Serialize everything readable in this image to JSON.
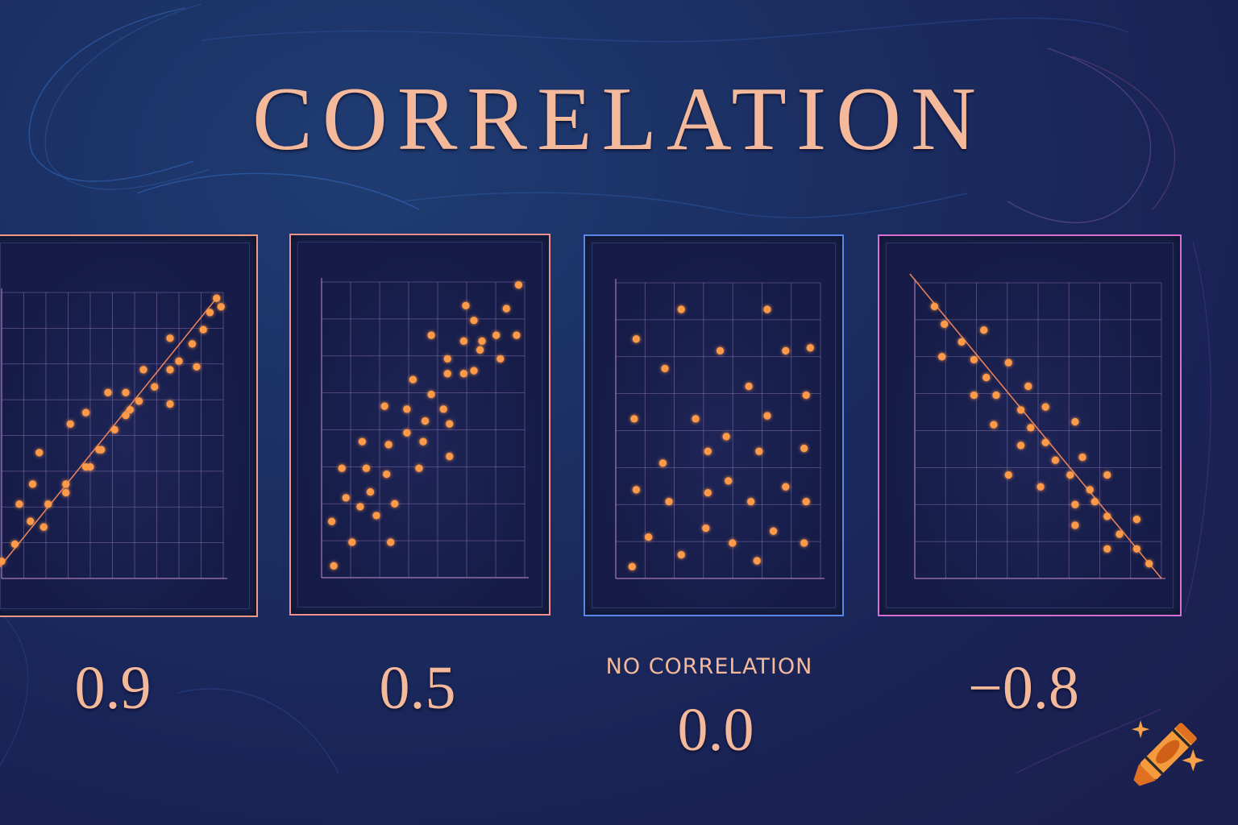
{
  "title": "CORRELATION",
  "labels": {
    "panel1_value": "0.9",
    "panel2_value": "0.5",
    "panel3_caption": "NO CORRELATION",
    "panel3_value": "0.0",
    "panel4_value": "−0.8"
  },
  "colors": {
    "background": "#1b2a5e",
    "text": "#f4b99a",
    "dot": "#ff9a4a",
    "grid": "#9a7fc0",
    "border_panel1": "#f29a86",
    "border_panel2": "#f08f8f",
    "border_panel3": "#5a86e8",
    "border_panel4": "#d86fd0"
  },
  "logo": {
    "icon": "crayon-icon",
    "sparkles": 2
  },
  "chart_data": [
    {
      "type": "scatter",
      "title": "0.9",
      "correlation": 0.9,
      "trendline": true,
      "grid": true,
      "xlim": [
        0,
        1
      ],
      "ylim": [
        0,
        1
      ],
      "points": [
        [
          0.0,
          0.06
        ],
        [
          0.06,
          0.12
        ],
        [
          0.13,
          0.2
        ],
        [
          0.21,
          0.26
        ],
        [
          0.29,
          0.33
        ],
        [
          0.38,
          0.39
        ],
        [
          0.44,
          0.45
        ],
        [
          0.51,
          0.52
        ],
        [
          0.56,
          0.57
        ],
        [
          0.62,
          0.62
        ],
        [
          0.69,
          0.67
        ],
        [
          0.76,
          0.73
        ],
        [
          0.8,
          0.76
        ],
        [
          0.86,
          0.82
        ],
        [
          0.91,
          0.87
        ],
        [
          0.94,
          0.93
        ],
        [
          0.97,
          0.98
        ],
        [
          0.08,
          0.26
        ],
        [
          0.14,
          0.33
        ],
        [
          0.17,
          0.44
        ],
        [
          0.19,
          0.18
        ],
        [
          0.29,
          0.3
        ],
        [
          0.31,
          0.54
        ],
        [
          0.38,
          0.58
        ],
        [
          0.4,
          0.39
        ],
        [
          0.45,
          0.45
        ],
        [
          0.48,
          0.65
        ],
        [
          0.56,
          0.65
        ],
        [
          0.58,
          0.59
        ],
        [
          0.64,
          0.73
        ],
        [
          0.76,
          0.84
        ],
        [
          0.76,
          0.61
        ],
        [
          0.88,
          0.74
        ],
        [
          0.99,
          0.95
        ]
      ]
    },
    {
      "type": "scatter",
      "title": "0.5",
      "correlation": 0.5,
      "trendline": false,
      "grid": true,
      "xlim": [
        0,
        1
      ],
      "ylim": [
        0,
        1
      ],
      "points": [
        [
          0.06,
          0.04
        ],
        [
          0.05,
          0.19
        ],
        [
          0.15,
          0.12
        ],
        [
          0.12,
          0.27
        ],
        [
          0.19,
          0.24
        ],
        [
          0.1,
          0.37
        ],
        [
          0.27,
          0.21
        ],
        [
          0.24,
          0.29
        ],
        [
          0.34,
          0.12
        ],
        [
          0.36,
          0.25
        ],
        [
          0.22,
          0.37
        ],
        [
          0.32,
          0.35
        ],
        [
          0.2,
          0.46
        ],
        [
          0.33,
          0.45
        ],
        [
          0.42,
          0.49
        ],
        [
          0.48,
          0.37
        ],
        [
          0.5,
          0.46
        ],
        [
          0.31,
          0.58
        ],
        [
          0.42,
          0.57
        ],
        [
          0.51,
          0.53
        ],
        [
          0.54,
          0.62
        ],
        [
          0.6,
          0.57
        ],
        [
          0.63,
          0.52
        ],
        [
          0.63,
          0.41
        ],
        [
          0.45,
          0.67
        ],
        [
          0.62,
          0.69
        ],
        [
          0.62,
          0.74
        ],
        [
          0.7,
          0.69
        ],
        [
          0.75,
          0.7
        ],
        [
          0.78,
          0.77
        ],
        [
          0.54,
          0.82
        ],
        [
          0.7,
          0.8
        ],
        [
          0.79,
          0.8
        ],
        [
          0.86,
          0.82
        ],
        [
          0.88,
          0.74
        ],
        [
          0.96,
          0.82
        ],
        [
          0.71,
          0.92
        ],
        [
          0.75,
          0.87
        ],
        [
          0.91,
          0.91
        ],
        [
          0.97,
          0.99
        ]
      ]
    },
    {
      "type": "scatter",
      "title": "0.0",
      "subtitle": "NO CORRELATION",
      "correlation": 0.0,
      "trendline": false,
      "grid": true,
      "xlim": [
        0,
        1
      ],
      "ylim": [
        0,
        1
      ],
      "points": [
        [
          0.32,
          0.91
        ],
        [
          0.74,
          0.91
        ],
        [
          0.1,
          0.81
        ],
        [
          0.51,
          0.77
        ],
        [
          0.83,
          0.77
        ],
        [
          0.95,
          0.78
        ],
        [
          0.24,
          0.71
        ],
        [
          0.65,
          0.65
        ],
        [
          0.93,
          0.62
        ],
        [
          0.09,
          0.54
        ],
        [
          0.39,
          0.54
        ],
        [
          0.74,
          0.55
        ],
        [
          0.54,
          0.48
        ],
        [
          0.45,
          0.43
        ],
        [
          0.7,
          0.43
        ],
        [
          0.92,
          0.44
        ],
        [
          0.23,
          0.39
        ],
        [
          0.55,
          0.33
        ],
        [
          0.1,
          0.3
        ],
        [
          0.45,
          0.29
        ],
        [
          0.83,
          0.31
        ],
        [
          0.26,
          0.26
        ],
        [
          0.66,
          0.26
        ],
        [
          0.93,
          0.26
        ],
        [
          0.44,
          0.17
        ],
        [
          0.77,
          0.16
        ],
        [
          0.16,
          0.14
        ],
        [
          0.57,
          0.12
        ],
        [
          0.92,
          0.12
        ],
        [
          0.32,
          0.08
        ],
        [
          0.69,
          0.06
        ],
        [
          0.08,
          0.04
        ]
      ]
    },
    {
      "type": "scatter",
      "title": "−0.8",
      "correlation": -0.8,
      "trendline": true,
      "grid": true,
      "xlim": [
        0,
        1
      ],
      "ylim": [
        0,
        1
      ],
      "points": [
        [
          0.08,
          0.92
        ],
        [
          0.12,
          0.86
        ],
        [
          0.19,
          0.8
        ],
        [
          0.24,
          0.74
        ],
        [
          0.29,
          0.68
        ],
        [
          0.43,
          0.57
        ],
        [
          0.47,
          0.51
        ],
        [
          0.53,
          0.46
        ],
        [
          0.57,
          0.4
        ],
        [
          0.63,
          0.35
        ],
        [
          0.71,
          0.3
        ],
        [
          0.73,
          0.26
        ],
        [
          0.78,
          0.21
        ],
        [
          0.83,
          0.15
        ],
        [
          0.9,
          0.1
        ],
        [
          0.95,
          0.05
        ],
        [
          0.11,
          0.75
        ],
        [
          0.28,
          0.84
        ],
        [
          0.38,
          0.73
        ],
        [
          0.46,
          0.65
        ],
        [
          0.24,
          0.62
        ],
        [
          0.33,
          0.62
        ],
        [
          0.53,
          0.58
        ],
        [
          0.32,
          0.52
        ],
        [
          0.65,
          0.53
        ],
        [
          0.43,
          0.45
        ],
        [
          0.68,
          0.41
        ],
        [
          0.38,
          0.35
        ],
        [
          0.51,
          0.31
        ],
        [
          0.78,
          0.35
        ],
        [
          0.65,
          0.25
        ],
        [
          0.65,
          0.18
        ],
        [
          0.9,
          0.2
        ],
        [
          0.78,
          0.1
        ]
      ]
    }
  ]
}
